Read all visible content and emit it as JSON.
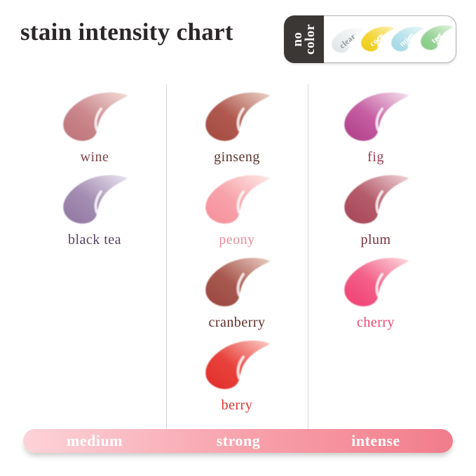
{
  "title": "stain intensity chart",
  "no_color_badge": {
    "tab_line1": "no",
    "tab_line2": "color",
    "tab_bg": "#3b3734",
    "swatches": [
      {
        "name": "clear",
        "deep": "#dde3e5",
        "main": "#ebeff0",
        "light": "#fafbfb",
        "text_color": "#8e979b"
      },
      {
        "name": "coco",
        "deep": "#eec911",
        "main": "#f3d63a",
        "light": "#faf0ae",
        "text_color": "#ffffff"
      },
      {
        "name": "mint",
        "deep": "#9ed5e2",
        "main": "#b8e2ea",
        "light": "#e9f6f8",
        "text_color": "#ffffff"
      },
      {
        "name": "tea",
        "deep": "#7fc97f",
        "main": "#9dd59b",
        "light": "#e3f3e1",
        "text_color": "#ffffff"
      }
    ]
  },
  "columns": [
    {
      "intensity": "medium",
      "swatches": [
        {
          "name": "wine",
          "deep": "#bd7379",
          "main": "#ca878c",
          "light": "#f2dcd8",
          "label_color": "#7d4248"
        },
        {
          "name": "black tea",
          "deep": "#8f76a1",
          "main": "#a48db2",
          "light": "#eae4ef",
          "label_color": "#564260"
        }
      ]
    },
    {
      "intensity": "strong",
      "swatches": [
        {
          "name": "ginseng",
          "deep": "#a3493f",
          "main": "#b05a50",
          "light": "#ecd3c8",
          "label_color": "#59332e"
        },
        {
          "name": "peony",
          "deep": "#f58e9b",
          "main": "#f7a3aa",
          "light": "#fdeae6",
          "label_color": "#f08b9e"
        },
        {
          "name": "cranberry",
          "deep": "#99453e",
          "main": "#a85a50",
          "light": "#e8cdc2",
          "label_color": "#5f2d27"
        },
        {
          "name": "berry",
          "deep": "#df2d28",
          "main": "#e8423c",
          "light": "#fbcdc5",
          "label_color": "#d93731"
        }
      ]
    },
    {
      "intensity": "intense",
      "swatches": [
        {
          "name": "fig",
          "deep": "#ad3d86",
          "main": "#c55ea2",
          "light": "#f5e2ec",
          "label_color": "#9c3a55"
        },
        {
          "name": "plum",
          "deep": "#a64458",
          "main": "#b45b69",
          "light": "#f0d5d8",
          "label_color": "#7b2f3e"
        },
        {
          "name": "cherry",
          "deep": "#ef3f74",
          "main": "#f35e86",
          "light": "#fbd9e0",
          "label_color": "#e9486f"
        }
      ]
    }
  ],
  "intensity_bar": {
    "labels": [
      "medium",
      "strong",
      "intense"
    ],
    "gradient": [
      "#fcd3d8",
      "#f8a3ad",
      "#f27c8b"
    ]
  }
}
